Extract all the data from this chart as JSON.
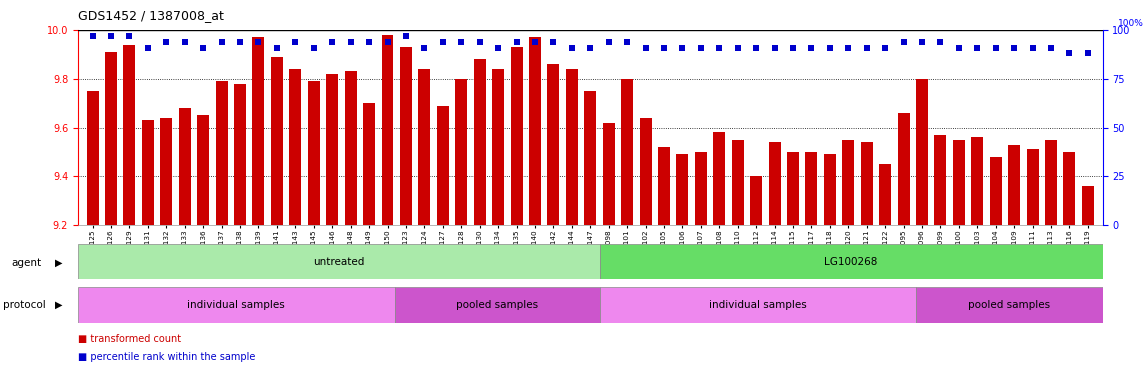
{
  "title": "GDS1452 / 1387008_at",
  "samples": [
    "GSM43125",
    "GSM43126",
    "GSM43129",
    "GSM43131",
    "GSM43132",
    "GSM43133",
    "GSM43136",
    "GSM43137",
    "GSM43138",
    "GSM43139",
    "GSM43141",
    "GSM43143",
    "GSM43145",
    "GSM43146",
    "GSM43148",
    "GSM43149",
    "GSM43150",
    "GSM43123",
    "GSM43124",
    "GSM43127",
    "GSM43128",
    "GSM43130",
    "GSM43134",
    "GSM43135",
    "GSM43140",
    "GSM43142",
    "GSM43144",
    "GSM43147",
    "GSM43098",
    "GSM43101",
    "GSM43102",
    "GSM43105",
    "GSM43106",
    "GSM43107",
    "GSM43108",
    "GSM43110",
    "GSM43112",
    "GSM43114",
    "GSM43115",
    "GSM43117",
    "GSM43118",
    "GSM43120",
    "GSM43121",
    "GSM43122",
    "GSM43095",
    "GSM43096",
    "GSM43099",
    "GSM43100",
    "GSM43103",
    "GSM43104",
    "GSM43109",
    "GSM43111",
    "GSM43113",
    "GSM43116",
    "GSM43119"
  ],
  "red_values": [
    9.75,
    9.91,
    9.94,
    9.63,
    9.64,
    9.68,
    9.65,
    9.79,
    9.78,
    9.97,
    9.89,
    9.84,
    9.79,
    9.82,
    9.83,
    9.7,
    9.98,
    9.93,
    9.84,
    9.69,
    9.8,
    9.88,
    9.84,
    9.93,
    9.97,
    9.86,
    9.84,
    9.75,
    9.62,
    9.8,
    9.64,
    9.52,
    9.49,
    9.5,
    9.58,
    9.55,
    9.4,
    9.54,
    9.5,
    9.5,
    9.49,
    9.55,
    9.54,
    9.45,
    9.66,
    9.8,
    9.57,
    9.55,
    9.56,
    9.48,
    9.53,
    9.51,
    9.55,
    9.5,
    9.36
  ],
  "blue_values": [
    97,
    97,
    97,
    91,
    94,
    94,
    91,
    94,
    94,
    94,
    91,
    94,
    91,
    94,
    94,
    94,
    94,
    97,
    91,
    94,
    94,
    94,
    91,
    94,
    94,
    94,
    91,
    91,
    94,
    94,
    91,
    91,
    91,
    91,
    91,
    91,
    91,
    91,
    91,
    91,
    91,
    91,
    91,
    91,
    94,
    94,
    94,
    91,
    91,
    91,
    91,
    91,
    91,
    88,
    88
  ],
  "ylim_left": [
    9.2,
    10.0
  ],
  "ylim_right": [
    0,
    100
  ],
  "yticks_left": [
    9.2,
    9.4,
    9.6,
    9.8,
    10.0
  ],
  "yticks_right": [
    0,
    25,
    50,
    75,
    100
  ],
  "bar_color": "#cc0000",
  "dot_color": "#0000cc",
  "agent_groups": [
    {
      "label": "untreated",
      "start": 0,
      "end": 28,
      "color": "#aaeaaa"
    },
    {
      "label": "LG100268",
      "start": 28,
      "end": 55,
      "color": "#66dd66"
    }
  ],
  "protocol_groups": [
    {
      "label": "individual samples",
      "start": 0,
      "end": 17,
      "color": "#ee88ee"
    },
    {
      "label": "pooled samples",
      "start": 17,
      "end": 28,
      "color": "#cc55cc"
    },
    {
      "label": "individual samples",
      "start": 28,
      "end": 45,
      "color": "#ee88ee"
    },
    {
      "label": "pooled samples",
      "start": 45,
      "end": 55,
      "color": "#cc55cc"
    }
  ],
  "legend_items": [
    {
      "label": "transformed count",
      "color": "#cc0000"
    },
    {
      "label": "percentile rank within the sample",
      "color": "#0000cc"
    }
  ],
  "bar_width": 0.65
}
